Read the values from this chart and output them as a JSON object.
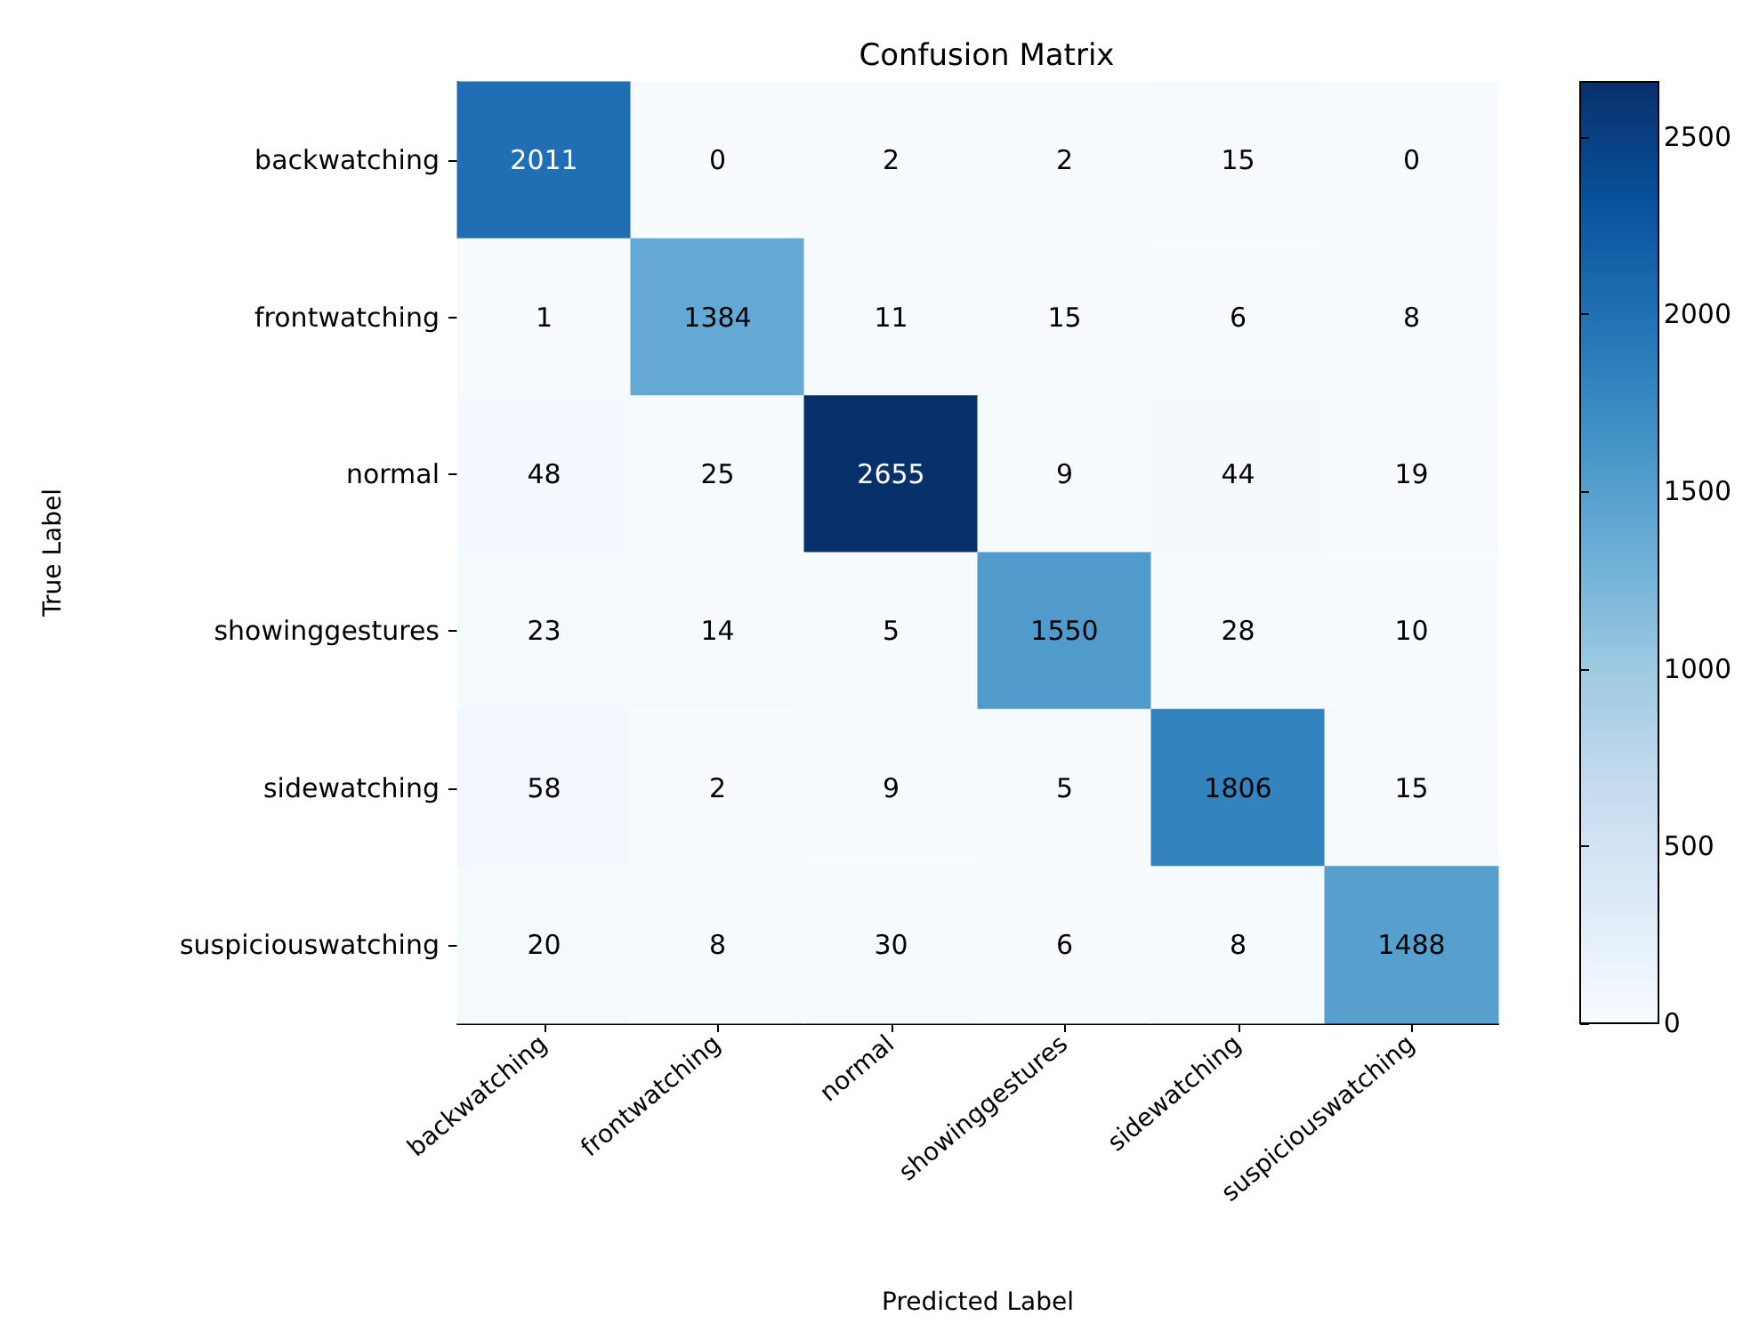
{
  "chart_data": {
    "type": "heatmap",
    "title": "Confusion Matrix",
    "xlabel": "Predicted Label",
    "ylabel": "True Label",
    "categories": [
      "backwatching",
      "frontwatching",
      "normal",
      "showinggestures",
      "sidewatching",
      "suspiciouswatching"
    ],
    "y_categories": [
      "backwatching",
      "frontwatching",
      "normal",
      "showinggestures",
      "sidewatching",
      "suspiciouswatching"
    ],
    "cells": [
      [
        2011,
        0,
        2,
        2,
        15,
        0
      ],
      [
        1,
        1384,
        11,
        15,
        6,
        8
      ],
      [
        48,
        25,
        2655,
        9,
        44,
        19
      ],
      [
        23,
        14,
        5,
        1550,
        28,
        10
      ],
      [
        58,
        2,
        9,
        5,
        1806,
        15
      ],
      [
        20,
        8,
        30,
        6,
        8,
        1488
      ]
    ],
    "data_labels": true,
    "clim": [
      0,
      2655
    ],
    "cticks": [
      0,
      500,
      1000,
      1500,
      2000,
      2500
    ]
  }
}
